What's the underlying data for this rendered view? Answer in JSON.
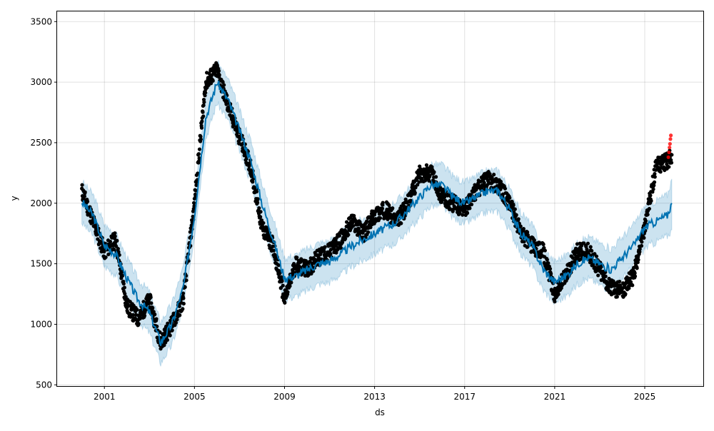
{
  "chart_data": {
    "type": "line",
    "title": "",
    "xlabel": "ds",
    "ylabel": "y",
    "xlim": [
      1998.9,
      2027.6
    ],
    "ylim": [
      490,
      3590
    ],
    "grid": true,
    "x_ticks": [
      2001,
      2005,
      2009,
      2013,
      2017,
      2021,
      2025
    ],
    "x_tick_labels": [
      "2001",
      "2005",
      "2009",
      "2013",
      "2017",
      "2021",
      "2025"
    ],
    "y_ticks": [
      500,
      1000,
      1500,
      2000,
      2500,
      3000,
      3500
    ],
    "y_tick_labels": [
      "500",
      "1000",
      "1500",
      "2000",
      "2500",
      "3000",
      "3500"
    ],
    "colors": {
      "forecast": "#0072B2",
      "band": "#0072B2",
      "actual": "#000000",
      "new_actual": "#ff0000"
    },
    "x": [
      2000.0,
      2000.5,
      2001.0,
      2001.5,
      2002.0,
      2002.5,
      2003.0,
      2003.5,
      2004.0,
      2004.5,
      2005.0,
      2005.5,
      2006.0,
      2006.5,
      2007.0,
      2007.5,
      2008.0,
      2008.5,
      2009.0,
      2009.5,
      2010.0,
      2010.5,
      2011.0,
      2011.5,
      2012.0,
      2012.5,
      2013.0,
      2013.5,
      2014.0,
      2014.5,
      2015.0,
      2015.5,
      2016.0,
      2016.5,
      2017.0,
      2017.5,
      2018.0,
      2018.5,
      2019.0,
      2019.5,
      2020.0,
      2020.5,
      2021.0,
      2021.5,
      2022.0,
      2022.5,
      2023.0,
      2023.5,
      2024.0,
      2024.5,
      2025.0,
      2025.5,
      2026.0,
      2026.2
    ],
    "series": [
      {
        "name": "yhat",
        "values": [
          2010,
          1900,
          1650,
          1580,
          1380,
          1200,
          1100,
          850,
          1000,
          1300,
          1900,
          2700,
          3000,
          2850,
          2600,
          2350,
          2000,
          1700,
          1380,
          1400,
          1450,
          1500,
          1520,
          1580,
          1650,
          1700,
          1750,
          1800,
          1850,
          1950,
          2050,
          2150,
          2150,
          2050,
          2000,
          2050,
          2100,
          2100,
          1950,
          1750,
          1650,
          1450,
          1350,
          1400,
          1500,
          1550,
          1500,
          1450,
          1550,
          1650,
          1800,
          1850,
          1900,
          2000
        ]
      },
      {
        "name": "yhat_lower",
        "values": [
          1840,
          1730,
          1480,
          1410,
          1210,
          1030,
          930,
          680,
          830,
          1130,
          1730,
          2530,
          2830,
          2680,
          2430,
          2180,
          1830,
          1530,
          1210,
          1230,
          1280,
          1330,
          1350,
          1410,
          1480,
          1530,
          1580,
          1630,
          1680,
          1780,
          1880,
          1980,
          1980,
          1880,
          1830,
          1880,
          1930,
          1930,
          1780,
          1580,
          1480,
          1280,
          1180,
          1230,
          1330,
          1380,
          1330,
          1280,
          1380,
          1480,
          1630,
          1680,
          1730,
          1780
        ]
      },
      {
        "name": "yhat_upper",
        "values": [
          2180,
          2070,
          1820,
          1750,
          1550,
          1370,
          1270,
          1020,
          1170,
          1470,
          2070,
          2870,
          3170,
          3020,
          2770,
          2520,
          2170,
          1870,
          1550,
          1570,
          1620,
          1670,
          1690,
          1750,
          1820,
          1870,
          1920,
          1970,
          2020,
          2120,
          2220,
          2320,
          2320,
          2220,
          2170,
          2220,
          2270,
          2270,
          2120,
          1920,
          1820,
          1620,
          1520,
          1570,
          1670,
          1720,
          1670,
          1620,
          1720,
          1820,
          1970,
          2020,
          2070,
          2200
        ]
      },
      {
        "name": "actual",
        "values": [
          2100,
          1850,
          1600,
          1700,
          1150,
          1050,
          1200,
          850,
          1000,
          1200,
          2000,
          3000,
          3100,
          2800,
          2550,
          2300,
          1800,
          1650,
          1200,
          1500,
          1450,
          1550,
          1600,
          1700,
          1850,
          1750,
          1900,
          1950,
          1850,
          2000,
          2250,
          2250,
          2050,
          2000,
          1950,
          2100,
          2200,
          2150,
          2000,
          1750,
          1650,
          1600,
          1250,
          1400,
          1600,
          1600,
          1450,
          1300,
          1280,
          1400,
          1800,
          2300,
          2350,
          2400
        ]
      }
    ],
    "new_actual": {
      "x": [
        2026.05,
        2026.08,
        2026.1,
        2026.12,
        2026.14,
        2026.16
      ],
      "values": [
        2380,
        2420,
        2460,
        2490,
        2530,
        2560
      ]
    }
  }
}
